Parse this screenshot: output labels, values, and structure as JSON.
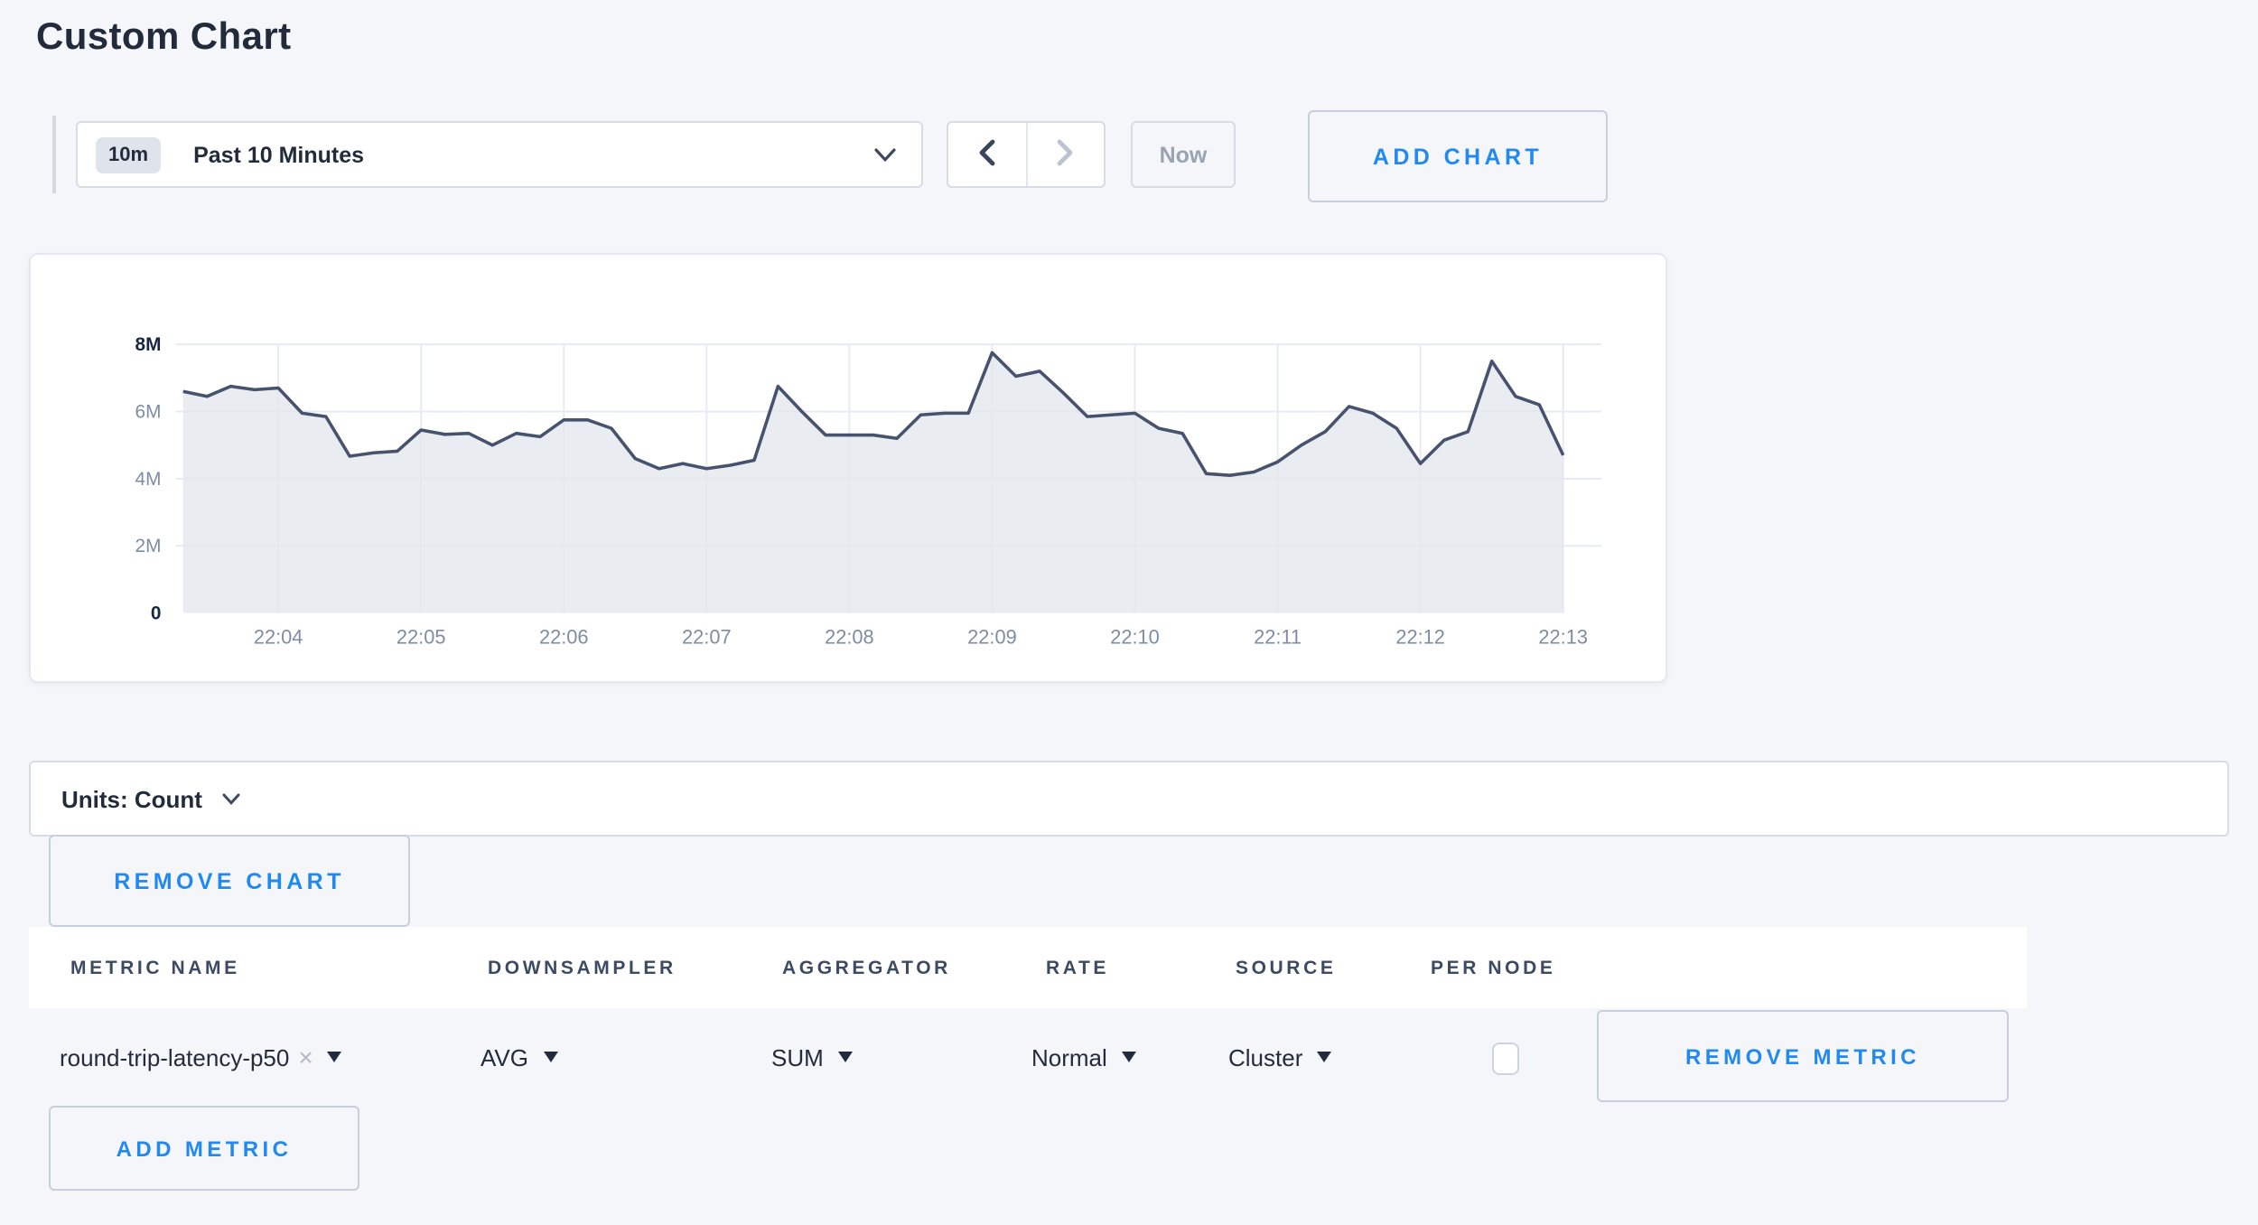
{
  "page": {
    "title": "Custom Chart"
  },
  "toolbar": {
    "time_badge": "10m",
    "time_label": "Past 10 Minutes",
    "now_label": "Now",
    "add_chart_label": "ADD CHART"
  },
  "chart_data": {
    "type": "area",
    "title": "",
    "series_name": "round-trip-latency-p50",
    "unit": "count",
    "x_start": "22:03:20",
    "x_end": "22:13:00",
    "x_interval_seconds": 10,
    "x_ticks": [
      "22:04",
      "22:05",
      "22:06",
      "22:07",
      "22:08",
      "22:09",
      "22:10",
      "22:11",
      "22:12",
      "22:13"
    ],
    "y_ticks": [
      {
        "label": "8M",
        "value": 8,
        "emphasis": true
      },
      {
        "label": "6M",
        "value": 6,
        "emphasis": false
      },
      {
        "label": "4M",
        "value": 4,
        "emphasis": false
      },
      {
        "label": "2M",
        "value": 2,
        "emphasis": false
      },
      {
        "label": "0",
        "value": 0,
        "emphasis": true
      }
    ],
    "ylim_millions": [
      0,
      8
    ],
    "grid": true,
    "legend": false,
    "values_millions": [
      6.6,
      6.45,
      6.75,
      6.65,
      6.7,
      5.95,
      5.85,
      4.67,
      4.77,
      4.82,
      5.45,
      5.32,
      5.35,
      5.0,
      5.35,
      5.25,
      5.75,
      5.75,
      5.5,
      4.6,
      4.3,
      4.45,
      4.3,
      4.4,
      4.55,
      6.75,
      6.0,
      5.3,
      5.3,
      5.3,
      5.2,
      5.9,
      5.95,
      5.95,
      7.75,
      7.05,
      7.2,
      6.55,
      5.85,
      5.9,
      5.95,
      5.5,
      5.35,
      4.15,
      4.1,
      4.2,
      4.5,
      5.0,
      5.4,
      6.15,
      5.95,
      5.5,
      4.45,
      5.15,
      5.4,
      7.5,
      6.45,
      6.2,
      4.7
    ]
  },
  "units_bar": {
    "label": "Units: Count"
  },
  "buttons": {
    "remove_chart": "REMOVE CHART"
  },
  "icons": {
    "close": "×"
  },
  "metrics_table": {
    "headers": [
      "METRIC NAME",
      "DOWNSAMPLER",
      "AGGREGATOR",
      "RATE",
      "SOURCE",
      "PER NODE"
    ],
    "rows": [
      {
        "metric": "round-trip-latency-p50",
        "downsampler": "AVG",
        "aggregator": "SUM",
        "rate": "Normal",
        "source": "Cluster",
        "per_node_checked": false,
        "remove_label": "REMOVE METRIC"
      }
    ],
    "add_metric_label": "ADD METRIC"
  },
  "colors": {
    "bg": "#f4f6f9",
    "dark": "#222b3b",
    "blue": "#2289f0",
    "border": "#d6dbe4",
    "grid": "#e6eaf2",
    "tick": "#7e8da3",
    "chart-line": "#47526e",
    "chart-fill": "#e4e7ed",
    "muted": "#9aa3b1",
    "header-text": "#3d4a64"
  }
}
